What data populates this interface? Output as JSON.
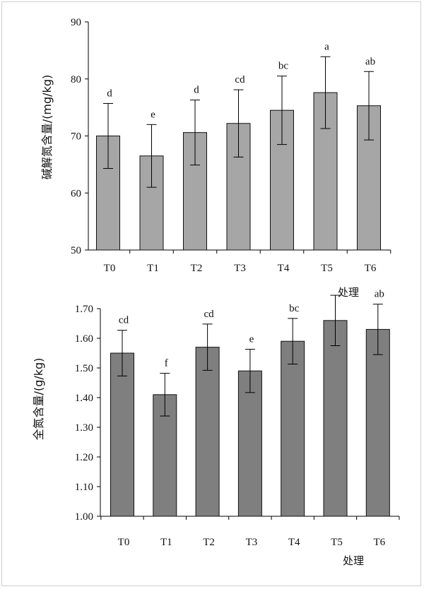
{
  "chart_data": [
    {
      "type": "bar",
      "categories": [
        "T0",
        "T1",
        "T2",
        "T3",
        "T4",
        "T5",
        "T6"
      ],
      "values": [
        70.0,
        66.5,
        70.6,
        72.2,
        74.5,
        77.6,
        75.3
      ],
      "error": [
        5.7,
        5.5,
        5.7,
        5.9,
        6.0,
        6.3,
        6.0
      ],
      "significance": [
        "d",
        "e",
        "d",
        "cd",
        "bc",
        "a",
        "ab"
      ],
      "ylabel": "碱解氮含量/(mg/kg)",
      "xlabel": "处理",
      "ylim": [
        50,
        90
      ],
      "yticks": [
        "50",
        "60",
        "70",
        "80",
        "90"
      ],
      "bar_color": "#a6a6a6"
    },
    {
      "type": "bar",
      "categories": [
        "T0",
        "T1",
        "T2",
        "T3",
        "T4",
        "T5",
        "T6"
      ],
      "values": [
        1.55,
        1.41,
        1.57,
        1.49,
        1.59,
        1.66,
        1.63
      ],
      "error": [
        0.077,
        0.072,
        0.078,
        0.073,
        0.077,
        0.085,
        0.085
      ],
      "significance": [
        "cd",
        "f",
        "cd",
        "e",
        "bc",
        "",
        "ab"
      ],
      "ylabel": "全氮含量/(g/kg)",
      "xlabel": "处理",
      "ylim": [
        1.0,
        1.7
      ],
      "yticks": [
        "1.00",
        "1.10",
        "1.20",
        "1.30",
        "1.40",
        "1.50",
        "1.60",
        "1.70"
      ],
      "bar_color": "#7f7f7f"
    }
  ]
}
